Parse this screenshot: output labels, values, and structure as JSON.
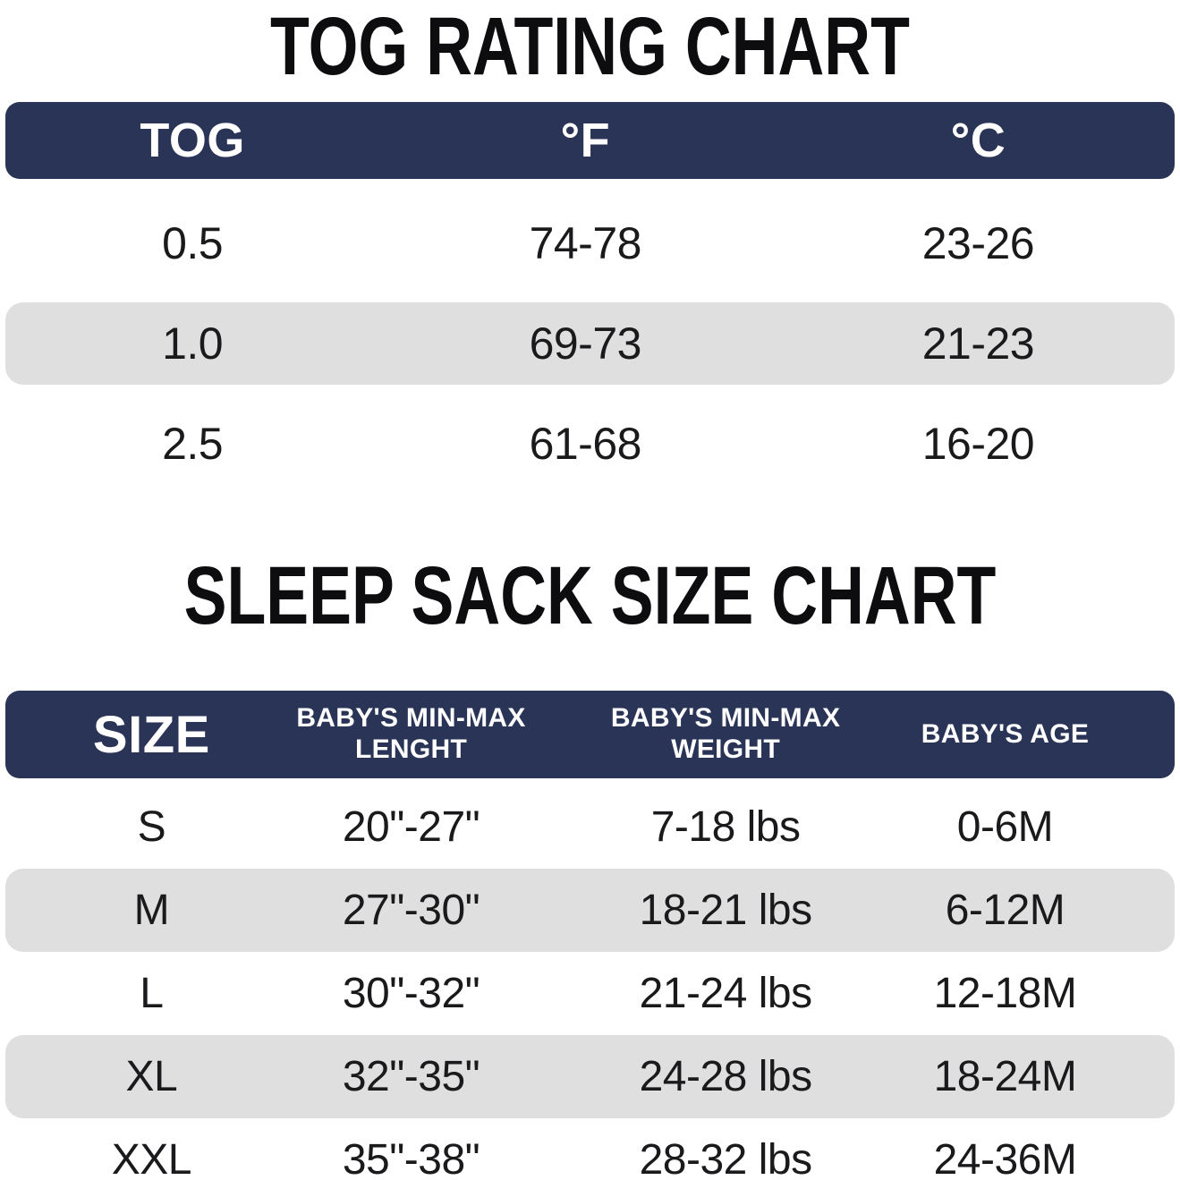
{
  "colors": {
    "header_background": "#2a3457",
    "header_text": "#ffffff",
    "shaded_row_background": "#dfdfdf",
    "body_text": "#1a1a1c",
    "title_text": "#0d0d0f",
    "page_background": "#ffffff"
  },
  "chart_data": [
    {
      "type": "table",
      "title": "TOG RATING CHART",
      "columns": [
        "TOG",
        "°F",
        "°C"
      ],
      "rows": [
        [
          "0.5",
          "74-78",
          "23-26"
        ],
        [
          "1.0",
          "69-73",
          "21-23"
        ],
        [
          "2.5",
          "61-68",
          "16-20"
        ]
      ],
      "layout_hint": "navy header bar, alternating white/gray rounded rows"
    },
    {
      "type": "table",
      "title": "SLEEP SACK SIZE CHART",
      "columns": [
        "SIZE",
        "BABY'S MIN-MAX LENGHT",
        "BABY'S MIN-MAX WEIGHT",
        "BABY'S AGE"
      ],
      "rows": [
        [
          "S",
          "20\"-27\"",
          "7-18 lbs",
          "0-6M"
        ],
        [
          "M",
          "27\"-30\"",
          "18-21 lbs",
          "6-12M"
        ],
        [
          "L",
          "30\"-32\"",
          "21-24 lbs",
          "12-18M"
        ],
        [
          "XL",
          "32\"-35\"",
          "24-28 lbs",
          "18-24M"
        ],
        [
          "XXL",
          "35\"-38\"",
          "28-32 lbs",
          "24-36M"
        ]
      ],
      "layout_hint": "navy header bar, alternating white/gray rounded rows"
    }
  ]
}
